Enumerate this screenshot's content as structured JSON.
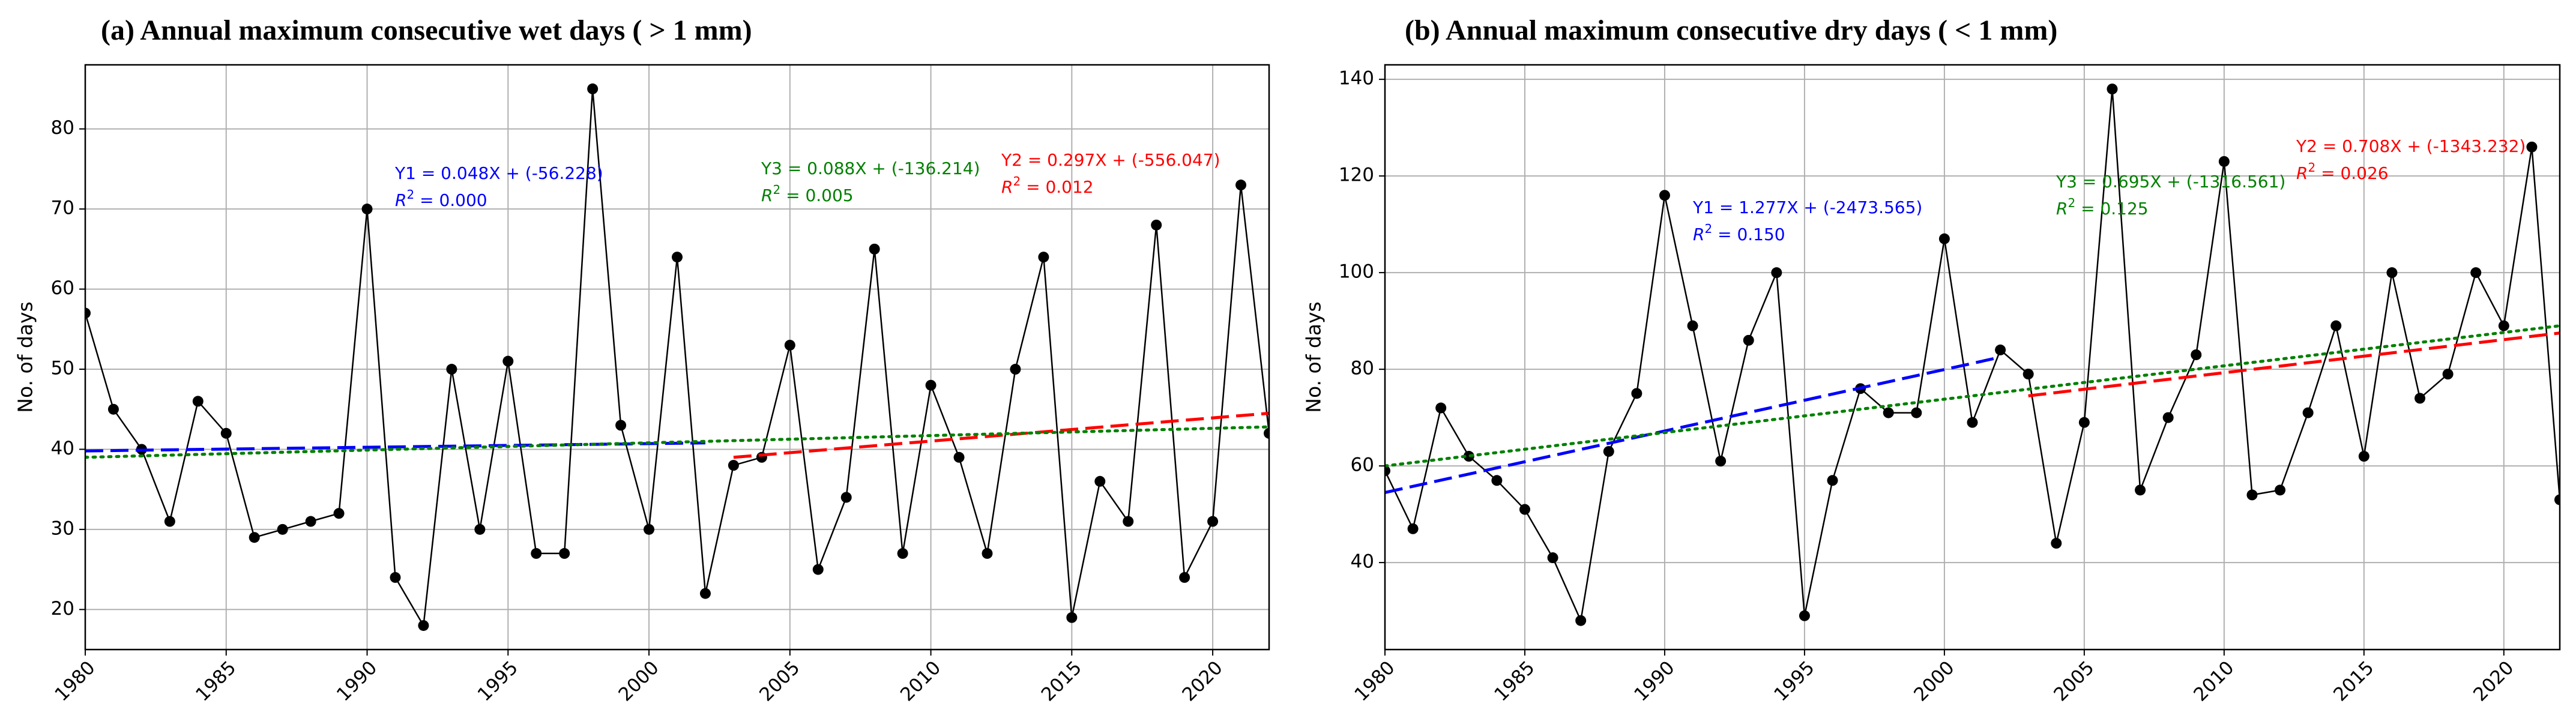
{
  "chart_data": [
    {
      "type": "line",
      "title": "(a) Annual maximum consecutive wet days ( > 1 mm)",
      "ylabel": "No. of days",
      "xlabel": "",
      "xlim": [
        1980,
        2022
      ],
      "ylim": [
        15,
        88
      ],
      "xticks": [
        1980,
        1985,
        1990,
        1995,
        2000,
        2005,
        2010,
        2015,
        2020
      ],
      "yticks": [
        20,
        30,
        40,
        50,
        60,
        70,
        80
      ],
      "grid": true,
      "series": [
        {
          "name": "observed",
          "color": "#000000",
          "x": [
            1980,
            1981,
            1982,
            1983,
            1984,
            1985,
            1986,
            1987,
            1988,
            1989,
            1990,
            1991,
            1992,
            1993,
            1994,
            1995,
            1996,
            1997,
            1998,
            1999,
            2000,
            2001,
            2002,
            2003,
            2004,
            2005,
            2006,
            2007,
            2008,
            2009,
            2010,
            2011,
            2012,
            2013,
            2014,
            2015,
            2016,
            2017,
            2018,
            2019,
            2020,
            2021,
            2022
          ],
          "values": [
            57,
            45,
            40,
            31,
            46,
            42,
            29,
            30,
            31,
            32,
            70,
            24,
            18,
            50,
            30,
            51,
            27,
            27,
            85,
            43,
            30,
            64,
            22,
            38,
            39,
            53,
            25,
            34,
            65,
            27,
            48,
            39,
            27,
            50,
            64,
            19,
            36,
            31,
            68,
            24,
            31,
            73,
            42
          ]
        }
      ],
      "trends": [
        {
          "name": "Y1",
          "label": "Y1 = 0.048X + (-56.228)",
          "r2_label": "$R^2$ = 0.000",
          "x_range": [
            1980,
            2002
          ],
          "y_range": [
            39.8,
            40.8
          ],
          "color": "#0000ff",
          "dash": "long"
        },
        {
          "name": "Y2",
          "label": "Y2 = 0.297X + (-556.047)",
          "r2_label": "$R^2$ = 0.012",
          "x_range": [
            2003,
            2022
          ],
          "y_range": [
            39.0,
            44.5
          ],
          "color": "#ff0000",
          "dash": "long"
        },
        {
          "name": "Y3",
          "label": "Y3 = 0.088X + (-136.214)",
          "r2_label": "$R^2$ = 0.005",
          "x_range": [
            1980,
            2022
          ],
          "y_range": [
            39.0,
            42.8
          ],
          "color": "#008000",
          "dash": "dotted"
        }
      ]
    },
    {
      "type": "line",
      "title": "(b) Annual maximum consecutive dry days ( < 1 mm)",
      "ylabel": "No. of days",
      "xlabel": "",
      "xlim": [
        1980,
        2022
      ],
      "ylim": [
        22,
        143
      ],
      "xticks": [
        1980,
        1985,
        1990,
        1995,
        2000,
        2005,
        2010,
        2015,
        2020
      ],
      "yticks": [
        40,
        60,
        80,
        100,
        120,
        140
      ],
      "grid": true,
      "series": [
        {
          "name": "observed",
          "color": "#000000",
          "x": [
            1980,
            1981,
            1982,
            1983,
            1984,
            1985,
            1986,
            1987,
            1988,
            1989,
            1990,
            1991,
            1992,
            1993,
            1994,
            1995,
            1996,
            1997,
            1998,
            1999,
            2000,
            2001,
            2002,
            2003,
            2004,
            2005,
            2006,
            2007,
            2008,
            2009,
            2010,
            2011,
            2012,
            2013,
            2014,
            2015,
            2016,
            2017,
            2018,
            2019,
            2020,
            2021,
            2022
          ],
          "values": [
            59,
            47,
            72,
            62,
            57,
            51,
            41,
            28,
            63,
            75,
            116,
            89,
            61,
            86,
            100,
            29,
            57,
            76,
            71,
            71,
            107,
            69,
            84,
            79,
            44,
            69,
            138,
            55,
            70,
            83,
            123,
            54,
            55,
            71,
            89,
            62,
            100,
            74,
            79,
            100,
            89,
            126,
            53
          ]
        }
      ],
      "trends": [
        {
          "name": "Y1",
          "label": "Y1 = 1.277X + (-2473.565)",
          "r2_label": "$R^2$ = 0.150",
          "x_range": [
            1980,
            2002
          ],
          "y_range": [
            54.5,
            82.5
          ],
          "color": "#0000ff",
          "dash": "long"
        },
        {
          "name": "Y2",
          "label": "Y2 = 0.708X + (-1343.232)",
          "r2_label": "$R^2$ = 0.026",
          "x_range": [
            2003,
            2022
          ],
          "y_range": [
            74.5,
            87.5
          ],
          "color": "#ff0000",
          "dash": "long"
        },
        {
          "name": "Y3",
          "label": "Y3 = 0.695X + (-1316.561)",
          "r2_label": "$R^2$ = 0.125",
          "x_range": [
            1980,
            2022
          ],
          "y_range": [
            60.0,
            89.0
          ],
          "color": "#008000",
          "dash": "dotted"
        }
      ]
    }
  ]
}
